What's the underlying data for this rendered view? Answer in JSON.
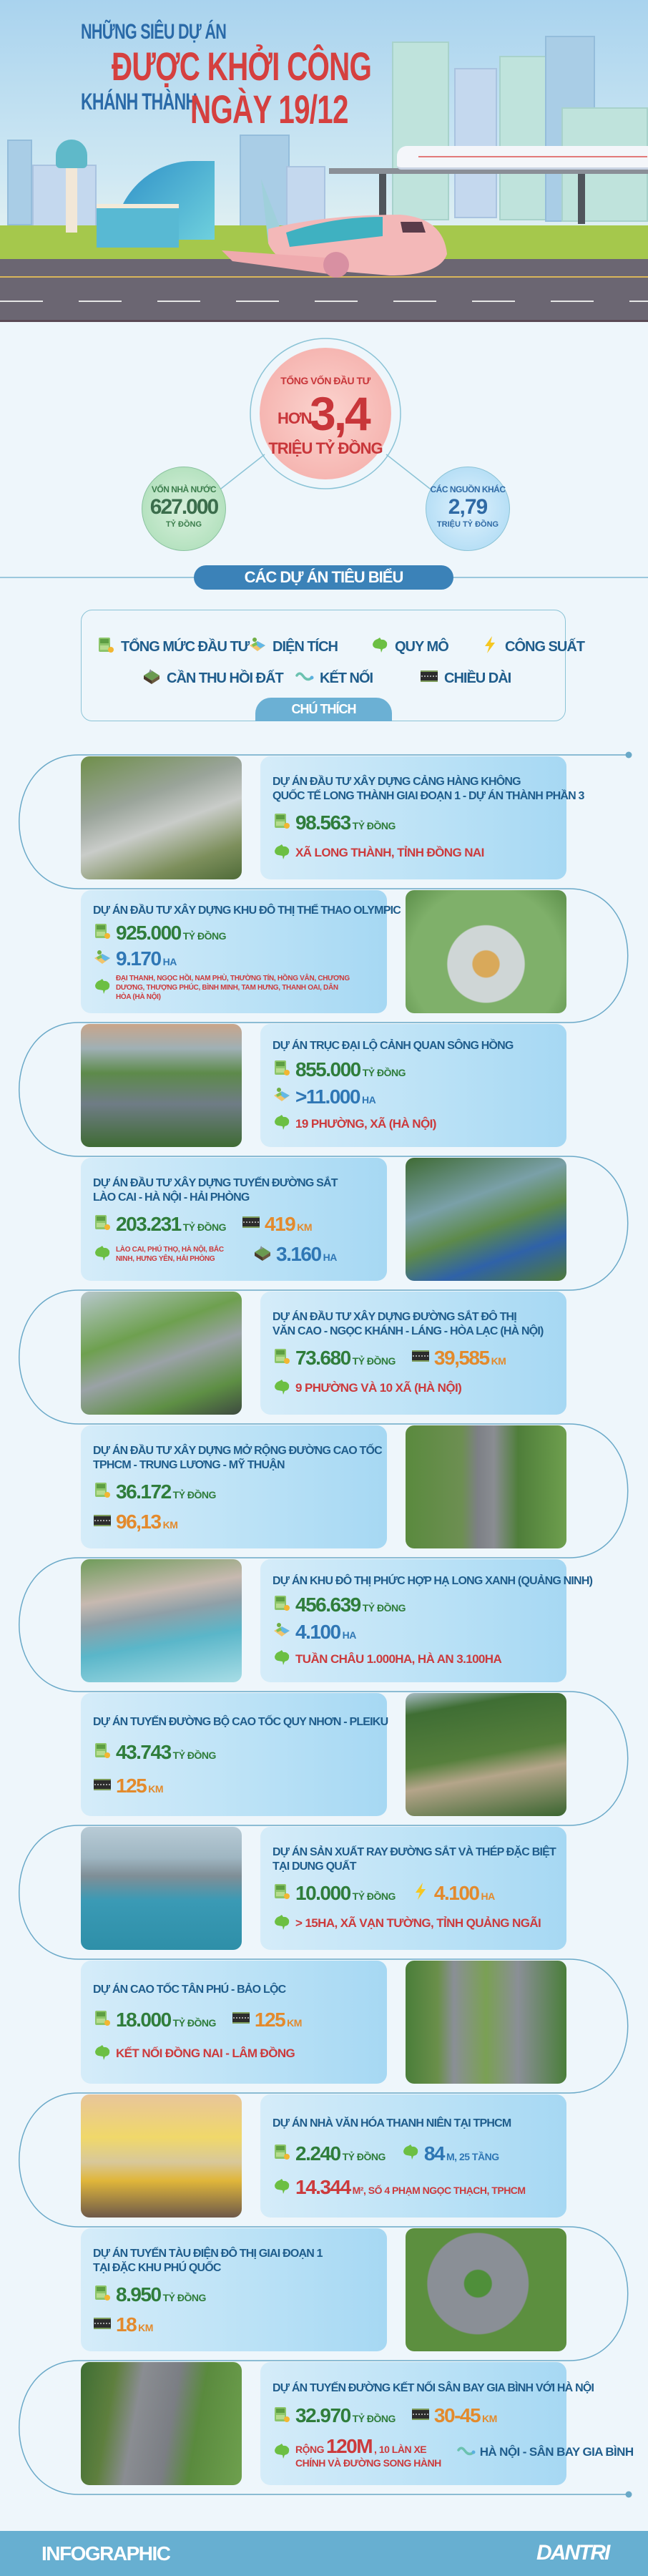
{
  "header": {
    "line1": "NHỮNG SIÊU DỰ ÁN",
    "line2": "ĐƯỢC KHỞI CÔNG",
    "line3": "KHÁNH THÀNH",
    "line4": "NGÀY 19/12"
  },
  "summary": {
    "total": {
      "label": "TỔNG VỐN ĐẦU TƯ",
      "prefix": "HƠN",
      "value": "3,4",
      "unit": "TRIỆU TỶ ĐỒNG"
    },
    "state": {
      "label": "VỐN NHÀ NƯỚC",
      "value": "627.000",
      "unit": "TỶ ĐỒNG"
    },
    "other": {
      "label": "CÁC NGUỒN KHÁC",
      "value": "2,79",
      "unit": "TRIỆU TỶ ĐỒNG"
    },
    "section_title": "CÁC DỰ ÁN TIÊU BIỂU"
  },
  "legend": {
    "title": "CHÚ THÍCH",
    "items": [
      {
        "icon": "money",
        "label": "TỔNG MỨC ĐẦU TƯ"
      },
      {
        "icon": "area",
        "label": "DIỆN TÍCH"
      },
      {
        "icon": "scale",
        "label": "QUY MÔ"
      },
      {
        "icon": "power",
        "label": "CÔNG SUẤT"
      },
      {
        "icon": "land",
        "label": "CẦN THU HỒI ĐẤT"
      },
      {
        "icon": "connect",
        "label": "KẾT NỐI"
      },
      {
        "icon": "length",
        "label": "CHIỀU DÀI"
      }
    ]
  },
  "colors": {
    "title_blue": "#1f5d8c",
    "money_green": "#2f7d3b",
    "area_blue": "#2f77b5",
    "location_red": "#cc3a3c",
    "length_orange": "#e38a2c",
    "section_pill": "#3b82b8",
    "footer": "#67afd1"
  },
  "projects": [
    {
      "title": [
        "DỰ ÁN ĐẦU TƯ XÂY DỰNG CẢNG HÀNG KHÔNG",
        "QUỐC TẾ LONG THÀNH GIAI ĐOẠN 1 - DỰ ÁN THÀNH PHẦN 3"
      ],
      "photo": "airport",
      "rows": [
        [
          {
            "icon": "money",
            "value": "98.563",
            "unit": "TỶ ĐỒNG",
            "tone": "green"
          }
        ],
        [
          {
            "icon": "scale",
            "value": "XÃ LONG THÀNH, TỈNH ĐỒNG NAI",
            "tone": "red",
            "style": "txt"
          }
        ]
      ]
    },
    {
      "title": [
        "DỰ ÁN ĐẦU TƯ XÂY DỰNG KHU ĐÔ THỊ THỂ THAO OLYMPIC"
      ],
      "photo": "stadium",
      "rows": [
        [
          {
            "icon": "money",
            "value": "925.000",
            "unit": "TỶ ĐỒNG",
            "tone": "green"
          }
        ],
        [
          {
            "icon": "area",
            "value": "9.170",
            "unit": "HA",
            "tone": "blue"
          }
        ],
        [
          {
            "icon": "scale",
            "value": "ĐẠI THANH, NGỌC HỒI, NAM PHÙ, THƯỜNG TÍN, HỒNG VÂN, CHƯƠNG DƯƠNG, THƯỢNG PHÚC, BÌNH MINH, TAM HƯNG, THANH OAI, DÂN HÒA (HÀ NỘI)",
            "tone": "red",
            "style": "sm"
          }
        ]
      ]
    },
    {
      "title": [
        "DỰ ÁN TRỤC ĐẠI LỘ CẢNH QUAN SÔNG HỒNG"
      ],
      "photo": "boulevard",
      "rows": [
        [
          {
            "icon": "money",
            "value": "855.000",
            "unit": "TỶ ĐỒNG",
            "tone": "green"
          }
        ],
        [
          {
            "icon": "area",
            "value": ">11.000",
            "unit": "HA",
            "tone": "blue"
          }
        ],
        [
          {
            "icon": "scale",
            "value": "19 PHƯỜNG, XÃ (HÀ NỘI)",
            "tone": "red",
            "style": "txt"
          }
        ]
      ]
    },
    {
      "title": [
        "DỰ ÁN ĐẦU TƯ XÂY DỰNG TUYẾN ĐƯỜNG SẮT",
        "LÀO CAI - HÀ NỘI - HẢI PHÒNG"
      ],
      "photo": "railway",
      "rows": [
        [
          {
            "icon": "money",
            "value": "203.231",
            "unit": "TỶ ĐỒNG",
            "tone": "green"
          },
          {
            "icon": "length",
            "value": "419",
            "unit": "KM",
            "tone": "orange"
          }
        ],
        [
          {
            "icon": "scale",
            "value": "LÀO CAI, PHÚ THỌ, HÀ NỘI, BẮC NINH, HƯNG YÊN, HẢI PHÒNG",
            "tone": "red",
            "style": "sm"
          },
          {
            "icon": "land",
            "value": "3.160",
            "unit": "HA",
            "tone": "blue"
          }
        ]
      ]
    },
    {
      "title": [
        "DỰ ÁN ĐẦU TƯ XÂY DỰNG ĐƯỜNG SẮT ĐÔ THỊ",
        "VĂN CAO - NGỌC KHÁNH - LÁNG - HÒA LẠC (HÀ NỘI)"
      ],
      "photo": "metro",
      "rows": [
        [
          {
            "icon": "money",
            "value": "73.680",
            "unit": "TỶ ĐỒNG",
            "tone": "green"
          },
          {
            "icon": "length",
            "value": "39,585",
            "unit": "KM",
            "tone": "orange"
          }
        ],
        [
          {
            "icon": "scale",
            "value": "9 PHƯỜNG VÀ 10 XÃ (HÀ NỘI)",
            "tone": "red",
            "style": "txt"
          }
        ]
      ]
    },
    {
      "title": [
        "DỰ ÁN ĐẦU TƯ XÂY DỰNG MỞ RỘNG ĐƯỜNG CAO TỐC",
        "TPHCM - TRUNG LƯƠNG - MỸ THUẬN"
      ],
      "photo": "expressway",
      "rows": [
        [
          {
            "icon": "money",
            "value": "36.172",
            "unit": "TỶ ĐỒNG",
            "tone": "green"
          }
        ],
        [
          {
            "icon": "length",
            "value": "96,13",
            "unit": "KM",
            "tone": "orange"
          }
        ]
      ]
    },
    {
      "title": [
        "DỰ ÁN KHU ĐÔ THỊ PHỨC HỢP HẠ LONG XANH (QUẢNG NINH)"
      ],
      "photo": "coast",
      "rows": [
        [
          {
            "icon": "money",
            "value": "456.639",
            "unit": "TỶ ĐỒNG",
            "tone": "green"
          }
        ],
        [
          {
            "icon": "area",
            "value": "4.100",
            "unit": "HA",
            "tone": "blue"
          }
        ],
        [
          {
            "icon": "scale",
            "value": "TUẦN CHÂU 1.000HA, HÀ AN 3.100HA",
            "tone": "red",
            "style": "txt"
          }
        ]
      ]
    },
    {
      "title": [
        "DỰ ÁN TUYẾN ĐƯỜNG BỘ CAO TỐC QUY NHƠN - PLEIKU"
      ],
      "photo": "mountain",
      "rows": [
        [
          {
            "icon": "money",
            "value": "43.743",
            "unit": "TỶ ĐỒNG",
            "tone": "green"
          }
        ],
        [
          {
            "icon": "length",
            "value": "125",
            "unit": "KM",
            "tone": "orange"
          }
        ]
      ]
    },
    {
      "title": [
        "DỰ ÁN SẢN XUẤT RAY ĐƯỜNG SẮT VÀ THÉP ĐẶC BIỆT",
        "TẠI DUNG QUẤT"
      ],
      "photo": "port",
      "rows": [
        [
          {
            "icon": "money",
            "value": "10.000",
            "unit": "TỶ ĐỒNG",
            "tone": "green"
          },
          {
            "icon": "power",
            "value": "4.100",
            "unit": "HA",
            "tone": "orange"
          }
        ],
        [
          {
            "icon": "scale",
            "value": "> 15HA, XÃ VẠN TƯỜNG, TỈNH QUẢNG NGÃI",
            "tone": "red",
            "style": "txt"
          }
        ]
      ]
    },
    {
      "title": [
        "DỰ ÁN CAO TỐC TÂN PHÚ - BẢO LỘC"
      ],
      "photo": "highway",
      "rows": [
        [
          {
            "icon": "money",
            "value": "18.000",
            "unit": "TỶ ĐỒNG",
            "tone": "green"
          },
          {
            "icon": "length",
            "value": "125",
            "unit": "KM",
            "tone": "orange"
          }
        ],
        [
          {
            "icon": "scale",
            "value": "KẾT NỐI ĐỒNG NAI - LÂM ĐỒNG",
            "tone": "red",
            "style": "txt"
          }
        ]
      ]
    },
    {
      "title": [
        "DỰ ÁN NHÀ VĂN HÓA THANH NIÊN TẠI TPHCM"
      ],
      "photo": "culture",
      "rows": [
        [
          {
            "icon": "money",
            "value": "2.240",
            "unit": "TỶ ĐỒNG",
            "tone": "green"
          },
          {
            "icon": "scale",
            "value": "84",
            "unit": "M, 25 TẦNG",
            "tone": "blue"
          }
        ],
        [
          {
            "icon": "scale",
            "value": "14.344",
            "unit": "M², SỐ 4 PHẠM NGỌC THẠCH, TPHCM",
            "tone": "red"
          }
        ]
      ]
    },
    {
      "title": [
        "DỰ ÁN TUYẾN TÀU ĐIỆN ĐÔ THỊ GIAI ĐOẠN 1",
        "TẠI ĐẶC KHU PHÚ QUỐC"
      ],
      "photo": "tram",
      "rows": [
        [
          {
            "icon": "money",
            "value": "8.950",
            "unit": "TỶ ĐỒNG",
            "tone": "green"
          }
        ],
        [
          {
            "icon": "length",
            "value": "18",
            "unit": "KM",
            "tone": "orange"
          }
        ]
      ]
    },
    {
      "title": [
        "DỰ ÁN TUYẾN ĐƯỜNG KẾT NỐI SÂN BAY GIA BÌNH VỚI HÀ NỘI"
      ],
      "photo": "road",
      "rows": [
        [
          {
            "icon": "money",
            "value": "32.970",
            "unit": "TỶ ĐỒNG",
            "tone": "green"
          },
          {
            "icon": "length",
            "value": "30-45",
            "unit": "KM",
            "tone": "orange"
          }
        ],
        [
          {
            "icon": "scale",
            "prefix": "RỘNG",
            "value": "120M",
            "unit": ", 10 LÀN XE",
            "line2": "CHÍNH VÀ ĐƯỜNG SONG HÀNH",
            "tone": "red"
          },
          {
            "icon": "connect",
            "value": "HÀ NỘI - SÂN BAY GIA BÌNH",
            "tone": "navy",
            "style": "txt"
          }
        ]
      ]
    }
  ],
  "footer": {
    "label": "INFOGRAPHIC",
    "brand": "DANTRI"
  }
}
